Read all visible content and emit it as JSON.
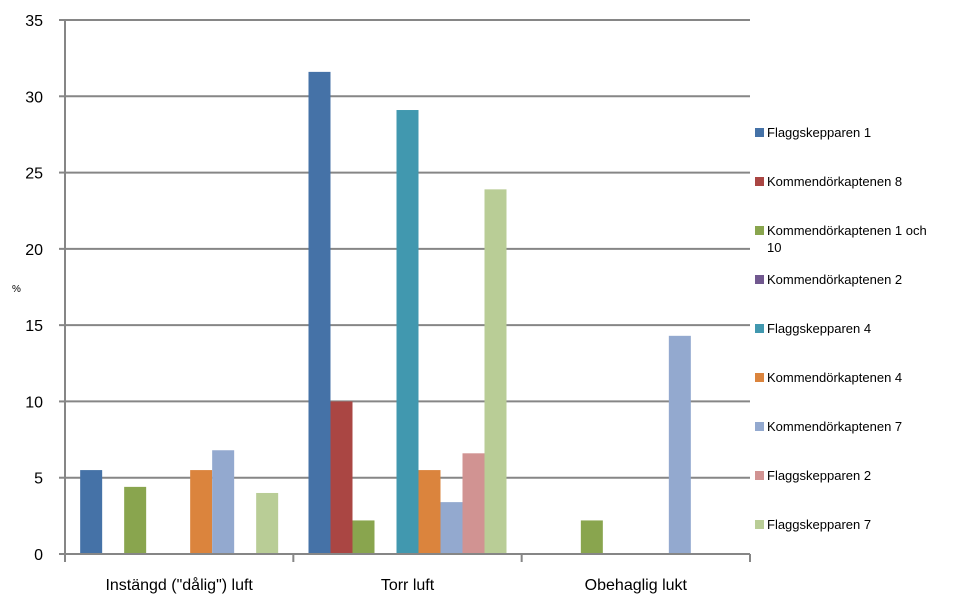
{
  "chart_data": {
    "type": "bar",
    "title": "",
    "xlabel": "",
    "ylabel": "%",
    "ylim": [
      0,
      35
    ],
    "yticks": [
      0,
      5,
      10,
      15,
      20,
      25,
      30,
      35
    ],
    "grid": true,
    "legend_position": "right",
    "categories": [
      "Instängd (\"dålig\") luft",
      "Torr luft",
      "Obehaglig lukt"
    ],
    "series": [
      {
        "name": "Flaggskepparen 1",
        "color": "#4572A7",
        "values": [
          5.5,
          31.6,
          0
        ]
      },
      {
        "name": "Kommendörkaptenen 8",
        "color": "#AA4643",
        "values": [
          0,
          10,
          0
        ]
      },
      {
        "name": "Kommendörkaptenen 1 och 10",
        "color": "#89A54E",
        "values": [
          4.4,
          2.2,
          2.2
        ]
      },
      {
        "name": "Kommendörkaptenen 2",
        "color": "#71588F",
        "values": [
          0,
          0,
          0
        ]
      },
      {
        "name": "Flaggskepparen 4",
        "color": "#4198AF",
        "values": [
          0,
          29.1,
          0
        ]
      },
      {
        "name": "Kommendörkaptenen 4",
        "color": "#DB843D",
        "values": [
          5.5,
          5.5,
          0
        ]
      },
      {
        "name": "Kommendörkaptenen 7",
        "color": "#93A9CF",
        "values": [
          6.8,
          3.4,
          14.3
        ]
      },
      {
        "name": "Flaggskepparen 2",
        "color": "#D19392",
        "values": [
          0,
          6.6,
          0
        ]
      },
      {
        "name": "Flaggskepparen 7",
        "color": "#B9CD96",
        "values": [
          4,
          23.9,
          0
        ]
      }
    ]
  }
}
